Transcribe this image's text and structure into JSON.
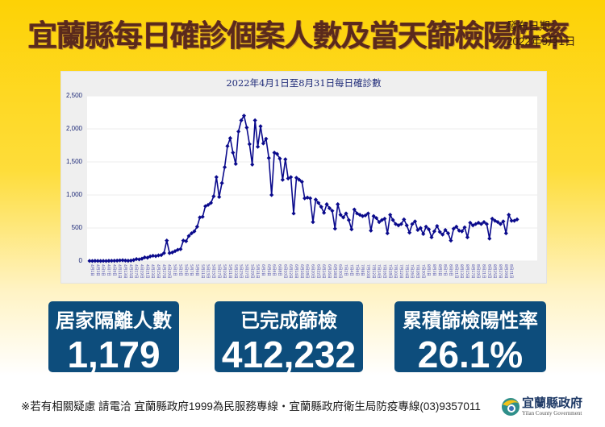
{
  "header": {
    "title": "宜蘭縣每日確診個案人數及當天篩檢陽性率",
    "pubdate_label": "發布日期：",
    "pubdate_value": "2022年9月1日"
  },
  "chart": {
    "title": "2022年4月1日至8月31日每日確診數",
    "y_ticks": [
      "2,500",
      "2,000",
      "1,500",
      "1,000",
      "500",
      "0"
    ]
  },
  "stats": [
    {
      "label": "居家隔離人數",
      "value": "1,179"
    },
    {
      "label": "已完成篩檢",
      "value": "412,232"
    },
    {
      "label": "累積篩檢陽性率",
      "value": "26.1%"
    }
  ],
  "footer": {
    "text": "※若有相關疑慮 請電洽  宜蘭縣政府1999為民服務專線・宜蘭縣政府衛生局防疫專線(03)9357011"
  },
  "logo": {
    "name_cn": "宜蘭縣政府",
    "name_en": "Yilan County Government"
  },
  "colors": {
    "background_top": "#fdd205",
    "title": "#5a2a1c",
    "stat_box": "#0d4d7c",
    "line": "#0a0a8c"
  },
  "chart_data": {
    "type": "line",
    "title": "2022年4月1日至8月31日每日確診數",
    "xlabel": "",
    "ylabel": "",
    "ylim": [
      0,
      2500
    ],
    "yticks": [
      0,
      500,
      1000,
      1500,
      2000,
      2500
    ],
    "grid": true,
    "legend": null,
    "x_start": "4月1日",
    "x_end": "8月31日",
    "x_label_interval": "every 2 days",
    "values": [
      2,
      1,
      3,
      2,
      1,
      2,
      1,
      3,
      4,
      5,
      6,
      10,
      12,
      8,
      5,
      8,
      15,
      30,
      25,
      35,
      55,
      50,
      70,
      80,
      75,
      85,
      90,
      120,
      310,
      120,
      130,
      150,
      170,
      180,
      310,
      300,
      380,
      420,
      450,
      520,
      660,
      670,
      830,
      850,
      880,
      980,
      1270,
      970,
      1180,
      1420,
      1740,
      1860,
      1640,
      1470,
      1960,
      2130,
      2200,
      2020,
      1770,
      1460,
      2130,
      1730,
      2040,
      1780,
      1850,
      1560,
      1000,
      1640,
      1620,
      1550,
      1230,
      1540,
      1250,
      1270,
      720,
      1260,
      1230,
      1200,
      950,
      960,
      950,
      590,
      930,
      880,
      820,
      730,
      860,
      800,
      760,
      490,
      860,
      700,
      660,
      720,
      620,
      480,
      780,
      720,
      700,
      680,
      690,
      720,
      460,
      680,
      650,
      590,
      620,
      640,
      420,
      700,
      620,
      560,
      540,
      560,
      630,
      540,
      430,
      560,
      600,
      470,
      500,
      410,
      520,
      480,
      360,
      450,
      530,
      440,
      400,
      470,
      420,
      310,
      490,
      520,
      460,
      450,
      510,
      360,
      580,
      540,
      560,
      580,
      560,
      590,
      560,
      340,
      640,
      610,
      590,
      560,
      600,
      420,
      700,
      610,
      610,
      630
    ]
  },
  "notes": ""
}
